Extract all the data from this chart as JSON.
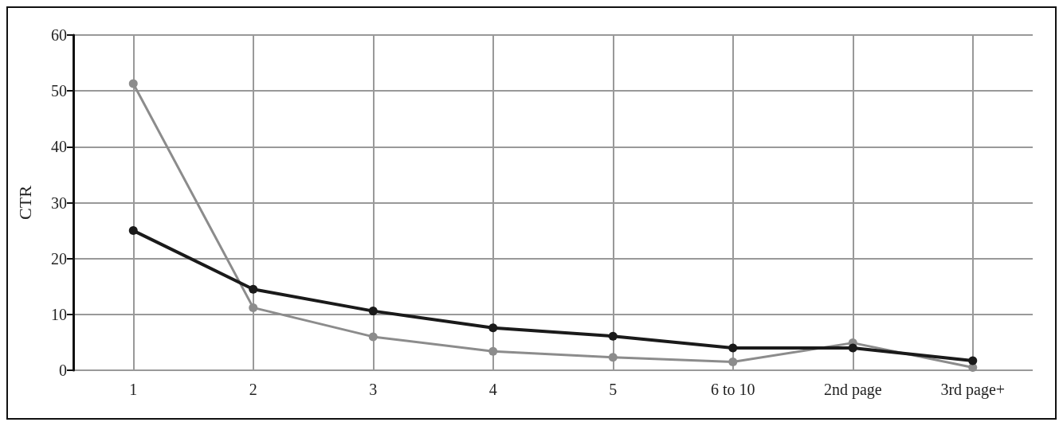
{
  "chart_data": {
    "type": "line",
    "ylabel": "CTR",
    "categories": [
      "1",
      "2",
      "3",
      "4",
      "5",
      "6 to 10",
      "2nd page",
      "3rd page+"
    ],
    "series": [
      {
        "color": "#8c8c8c",
        "values": [
          51.3,
          11.2,
          6,
          3.4,
          2.3,
          1.5,
          4.9,
          0.5
        ]
      },
      {
        "color": "#1a1a1a",
        "values": [
          25,
          14.5,
          10.6,
          7.6,
          6.1,
          4,
          4,
          1.7
        ]
      }
    ],
    "ylim": [
      0,
      60
    ],
    "yticks": [
      0,
      10,
      20,
      30,
      40,
      50,
      60
    ],
    "grid": true,
    "marker": "circle",
    "line_style": "solid"
  }
}
